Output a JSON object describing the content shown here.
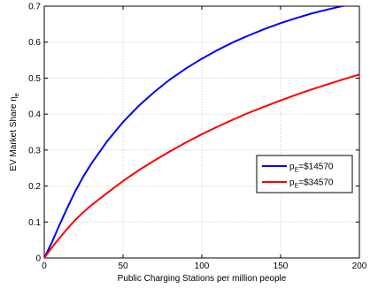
{
  "chart_data": {
    "type": "line",
    "title": "",
    "xlabel": "Public Charging Stations per million people",
    "ylabel": {
      "main": "EV Market Share η",
      "sub": "e"
    },
    "xlim": [
      0,
      200
    ],
    "ylim": [
      0,
      0.7
    ],
    "xticks": [
      0,
      50,
      100,
      150,
      200
    ],
    "xtick_labels": [
      "0",
      "50",
      "100",
      "150",
      "200"
    ],
    "yticks": [
      0,
      0.1,
      0.2,
      0.3,
      0.4,
      0.5,
      0.6,
      0.7
    ],
    "ytick_labels": [
      "0",
      "0.1",
      "0.2",
      "0.3",
      "0.4",
      "0.5",
      "0.6",
      "0.7"
    ],
    "grid": true,
    "legend_position": "center-right",
    "series": [
      {
        "name": {
          "prefix": "p",
          "sub": "E",
          "suffix": "=$14570"
        },
        "color": "#0000ff",
        "x": [
          0,
          5,
          10,
          15,
          20,
          25,
          30,
          40,
          50,
          60,
          70,
          80,
          90,
          100,
          110,
          120,
          130,
          140,
          150,
          160,
          170,
          180,
          190,
          200
        ],
        "y": [
          0.0,
          0.045,
          0.095,
          0.143,
          0.188,
          0.228,
          0.263,
          0.325,
          0.378,
          0.423,
          0.462,
          0.497,
          0.527,
          0.554,
          0.578,
          0.6,
          0.619,
          0.637,
          0.653,
          0.667,
          0.68,
          0.691,
          0.701,
          0.71
        ]
      },
      {
        "name": {
          "prefix": "p",
          "sub": "E",
          "suffix": "=$34570"
        },
        "color": "#ff0000",
        "x": [
          0,
          5,
          10,
          15,
          20,
          25,
          30,
          40,
          50,
          60,
          70,
          80,
          90,
          100,
          110,
          120,
          130,
          140,
          150,
          160,
          170,
          180,
          190,
          200
        ],
        "y": [
          0.0,
          0.03,
          0.057,
          0.083,
          0.107,
          0.128,
          0.147,
          0.181,
          0.214,
          0.244,
          0.271,
          0.297,
          0.321,
          0.344,
          0.365,
          0.385,
          0.404,
          0.421,
          0.438,
          0.454,
          0.469,
          0.483,
          0.497,
          0.51
        ]
      }
    ]
  },
  "colors": {
    "axis": "#000000",
    "grid": "#c8c8c8",
    "background": "#ffffff"
  }
}
